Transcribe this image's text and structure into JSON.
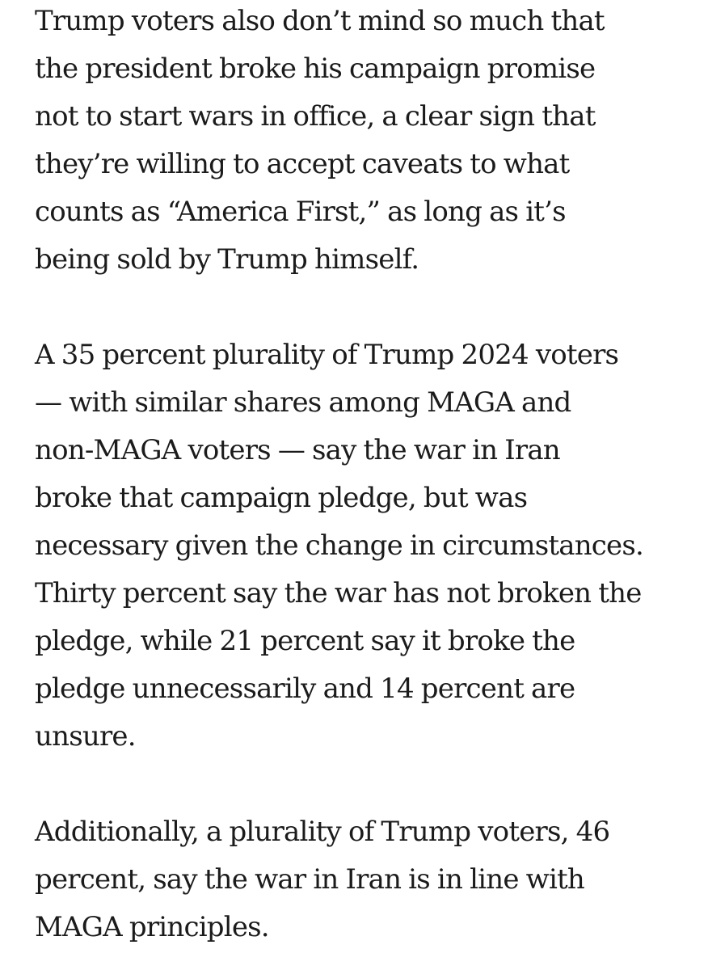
{
  "article": {
    "paragraphs": [
      {
        "lines": [
          "Trump voters also don’t mind so much that",
          "the president broke his campaign promise",
          "not to start wars in office, a clear sign that",
          "they’re willing to accept caveats to what",
          "counts as “America First,” as long as it’s",
          "being sold by Trump himself."
        ]
      },
      {
        "lines": [
          "A 35 percent plurality of Trump 2024 voters",
          "— with similar shares among MAGA and",
          "non-MAGA voters — say the war in Iran",
          "broke that campaign pledge, but was",
          "necessary given the change in circumstances.",
          "Thirty percent say the war has not broken the",
          "pledge, while 21 percent say it broke the",
          "pledge unnecessarily and 14 percent are",
          "unsure."
        ]
      },
      {
        "lines": [
          "Additionally, a plurality of Trump voters, 46",
          "percent, say the war in Iran is in line with",
          "MAGA principles."
        ]
      }
    ]
  }
}
